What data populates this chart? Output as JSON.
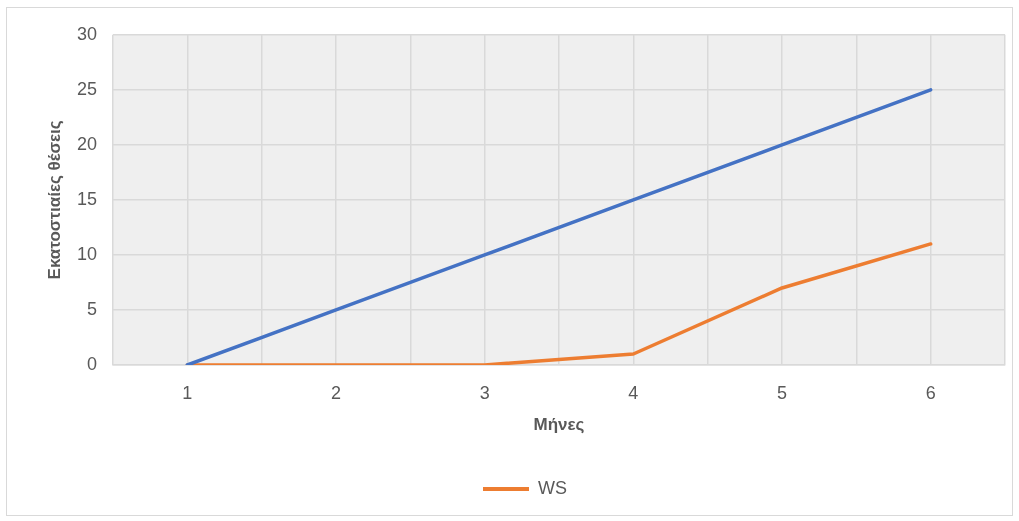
{
  "chart_data": {
    "type": "line",
    "xlabel": "Μήνες",
    "ylabel": "Εκατοστιαίες θέσεις",
    "x": [
      1,
      2,
      3,
      4,
      5,
      6
    ],
    "xlim": [
      0.5,
      6.5
    ],
    "xticks": [
      {
        "value": 0.5,
        "label": null
      },
      1,
      {
        "value": 1.5,
        "label": null
      },
      2,
      {
        "value": 2.5,
        "label": null
      },
      3,
      {
        "value": 3.5,
        "label": null
      },
      4,
      {
        "value": 4.5,
        "label": null
      },
      5,
      {
        "value": 5.5,
        "label": null
      },
      6,
      {
        "value": 6.5,
        "label": null
      }
    ],
    "ylim": [
      0,
      30
    ],
    "yticks": [
      0,
      5,
      10,
      15,
      20,
      25,
      30
    ],
    "grid": true,
    "legend": "bottom",
    "marker": "none",
    "line_style": "solid",
    "series": [
      {
        "color": "#4472c4",
        "values": [
          0,
          5,
          10,
          15,
          20,
          25
        ]
      },
      {
        "name": "WS",
        "color": "#ed7d31",
        "values": [
          0,
          0,
          0,
          1,
          7,
          11
        ]
      }
    ]
  }
}
